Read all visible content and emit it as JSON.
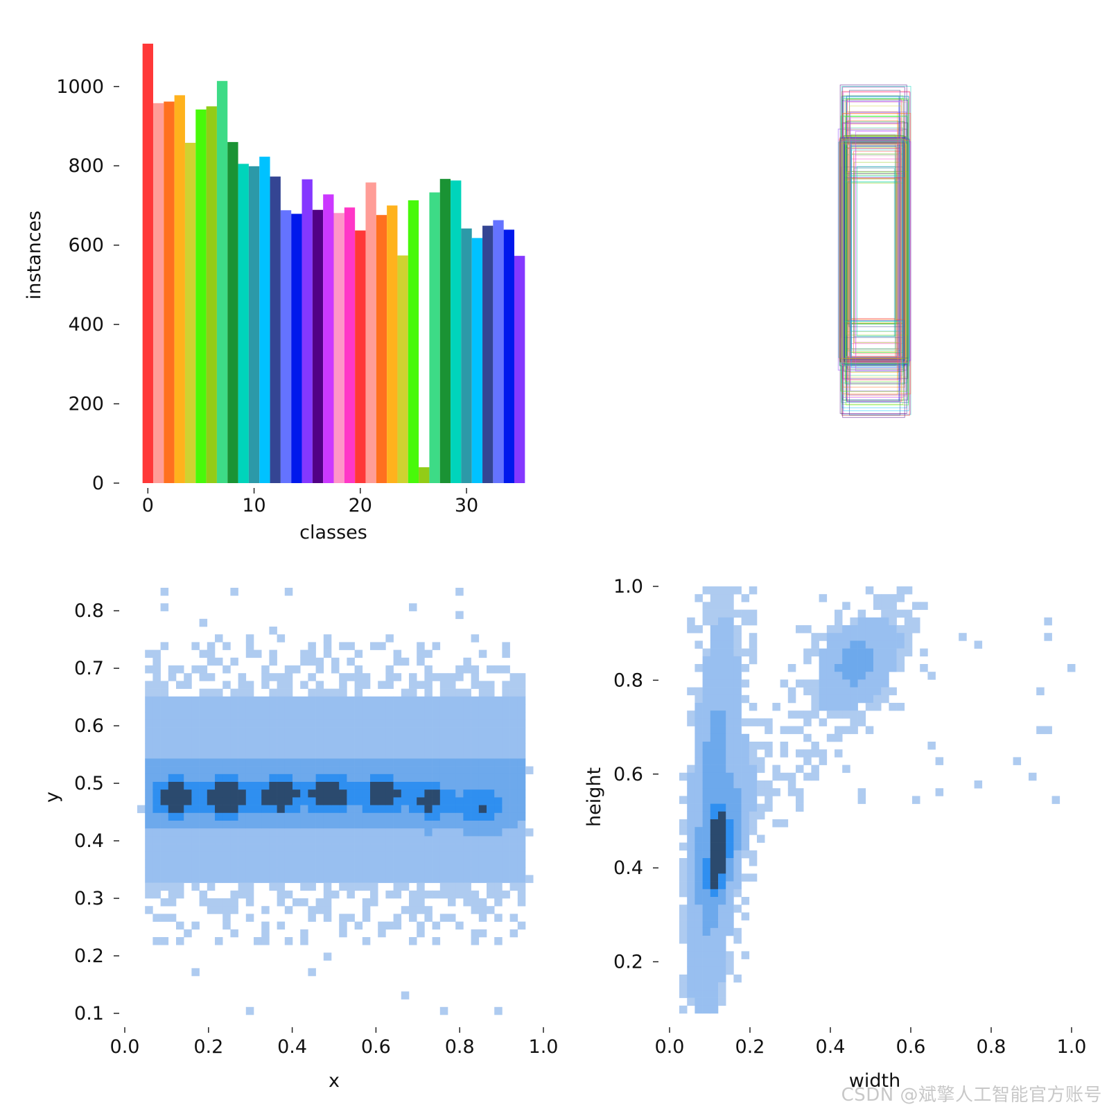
{
  "colors": {
    "palette": [
      "#ff3838",
      "#ff9d97",
      "#ff701f",
      "#ffb21d",
      "#cfd231",
      "#48f90a",
      "#92cc17",
      "#3ddb86",
      "#1a9334",
      "#00d4bb",
      "#2c99a8",
      "#00c2ff",
      "#344593",
      "#6473ff",
      "#0018ec",
      "#8438ff",
      "#520085",
      "#cb38ff",
      "#ff95c8",
      "#ff37c7"
    ],
    "heat_low": "#aecbf0",
    "heat_mid": "#2f8ff0",
    "heat_high": "#2b4a6e"
  },
  "watermark": "CSDN @斌擎人工智能官方账号",
  "chart_data": [
    {
      "id": "classes",
      "type": "bar",
      "xlabel": "classes",
      "ylabel": "instances",
      "x": [
        0,
        1,
        2,
        3,
        4,
        5,
        6,
        7,
        8,
        9,
        10,
        11,
        12,
        13,
        14,
        15,
        16,
        17,
        18,
        19,
        20,
        21,
        22,
        23,
        24,
        25,
        26,
        27,
        28,
        29,
        30,
        31,
        32,
        33,
        34,
        35
      ],
      "values": [
        1108,
        958,
        962,
        978,
        858,
        942,
        950,
        1014,
        860,
        805,
        799,
        823,
        773,
        688,
        679,
        766,
        689,
        728,
        681,
        695,
        637,
        758,
        676,
        700,
        574,
        713,
        40,
        733,
        767,
        763,
        642,
        618,
        649,
        663,
        639,
        573
      ],
      "xticks": [
        0,
        10,
        20,
        30
      ],
      "yticks": [
        0,
        200,
        400,
        600,
        800,
        1000
      ],
      "xlim": [
        -1,
        36
      ],
      "ylim": [
        0,
        1108
      ]
    },
    {
      "id": "boxes",
      "type": "other",
      "description_shown": "overlay of normalized bounding boxes centered together"
    },
    {
      "id": "xy",
      "type": "heatmap",
      "xlabel": "x",
      "ylabel": "y",
      "xticks": [
        "0.0",
        "0.2",
        "0.4",
        "0.6",
        "0.8",
        "1.0"
      ],
      "yticks": [
        "0.1",
        "0.2",
        "0.3",
        "0.4",
        "0.5",
        "0.6",
        "0.7",
        "0.8"
      ],
      "xlim": [
        0,
        1
      ],
      "ylim": [
        0.1,
        0.84
      ],
      "clusters": [
        {
          "x": 0.12,
          "y": 0.475,
          "density": 1.0
        },
        {
          "x": 0.245,
          "y": 0.475,
          "density": 1.0
        },
        {
          "x": 0.37,
          "y": 0.478,
          "density": 0.95
        },
        {
          "x": 0.49,
          "y": 0.48,
          "density": 0.95
        },
        {
          "x": 0.615,
          "y": 0.48,
          "density": 0.8
        },
        {
          "x": 0.73,
          "y": 0.47,
          "density": 0.7
        },
        {
          "x": 0.85,
          "y": 0.46,
          "density": 0.55
        }
      ]
    },
    {
      "id": "wh",
      "type": "heatmap",
      "xlabel": "width",
      "ylabel": "height",
      "xticks": [
        "0.0",
        "0.2",
        "0.4",
        "0.6",
        "0.8",
        "1.0"
      ],
      "yticks": [
        "0.2",
        "0.4",
        "0.6",
        "0.8",
        "1.0"
      ],
      "xlim": [
        0,
        1
      ],
      "ylim": [
        0.09,
        1.0
      ],
      "clusters": [
        {
          "x": 0.13,
          "y": 0.46,
          "density": 1.0
        },
        {
          "x": 0.11,
          "y": 0.38,
          "density": 0.8
        }
      ]
    }
  ]
}
